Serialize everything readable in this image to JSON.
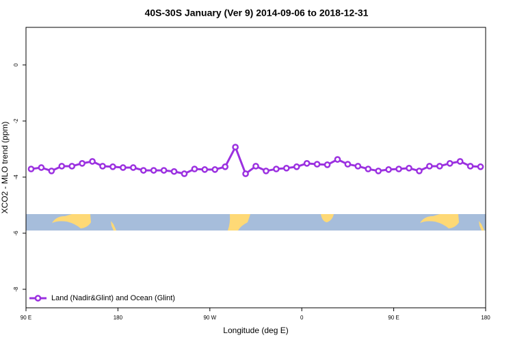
{
  "chart_data": {
    "type": "line",
    "title": "40S-30S January (Ver 9)   2014-09-06 to 2018-12-31",
    "x_label": "Longitude (deg E)",
    "y_label": "XCO2 - MLO trend (ppm)",
    "x": [
      95,
      105,
      115,
      125,
      135,
      145,
      155,
      165,
      175,
      185,
      195,
      205,
      215,
      225,
      235,
      245,
      255,
      265,
      275,
      285,
      295,
      305,
      315,
      325,
      335,
      345,
      355,
      365,
      375,
      385,
      395,
      405,
      415,
      425,
      435,
      445,
      455,
      465,
      475,
      485,
      495,
      505,
      515,
      525,
      535
    ],
    "series": [
      {
        "name": "Land (Nadir&Glint) and Ocean (Glint)",
        "color": "#9b30e0",
        "values": [
          -3.71,
          -3.66,
          -3.78,
          -3.61,
          -3.61,
          -3.51,
          -3.44,
          -3.61,
          -3.63,
          -3.66,
          -3.66,
          -3.76,
          -3.76,
          -3.76,
          -3.8,
          -3.88,
          -3.71,
          -3.73,
          -3.73,
          -3.63,
          -2.93,
          -3.88,
          -3.61,
          -3.78,
          -3.71,
          -3.68,
          -3.63,
          -3.51,
          -3.54,
          -3.56,
          -3.37,
          -3.54,
          -3.61,
          -3.71,
          -3.78,
          -3.73,
          -3.71,
          -3.68,
          -3.78,
          -3.61,
          -3.61,
          -3.51,
          -3.44,
          -3.61,
          -3.63
        ]
      }
    ],
    "xlim": [
      90,
      540
    ],
    "xticks": [
      {
        "value": 90,
        "label": "90 E"
      },
      {
        "value": 180,
        "label": "180"
      },
      {
        "value": 270,
        "label": "90 W"
      },
      {
        "value": 360,
        "label": "0"
      },
      {
        "value": 450,
        "label": "90 E"
      },
      {
        "value": 540,
        "label": "180"
      }
    ],
    "ylim": [
      -8.66,
      1.34
    ],
    "yticks": [
      0,
      -2,
      -4,
      -6,
      -8
    ],
    "legend": "bottom-left"
  }
}
